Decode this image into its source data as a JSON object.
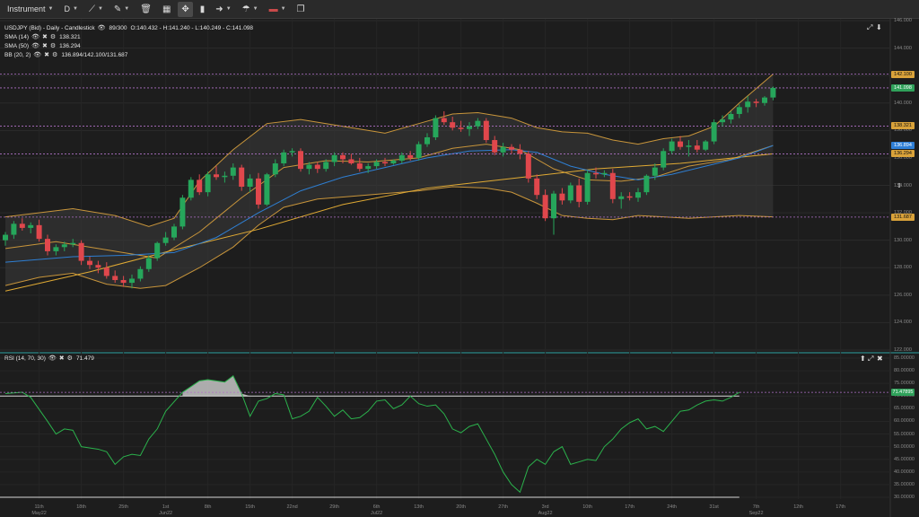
{
  "toolbar": {
    "instrument_label": "Instrument",
    "timeframe_label": "D",
    "icons": [
      "line-draw-icon",
      "pencil-icon",
      "trash-icon",
      "bar-chart-icon",
      "cross-icon",
      "candle-icon",
      "arrow-icon",
      "brush-icon",
      "flag-uk-icon",
      "copy-icon"
    ]
  },
  "header": {
    "title": "USDJPY (Bid) - Daily - Candlestick",
    "range": "89/300",
    "ohlc": "O:140.432 - H:141.240 - L:140.249 - C:141.098"
  },
  "indicators": [
    {
      "label": "SMA (14)",
      "value": "138.321",
      "color": "#f2b33d"
    },
    {
      "label": "SMA (50)",
      "value": "136.294",
      "color": "#3b8fd9"
    },
    {
      "label": "BB (20, 2)",
      "value": "136.894/142.100/131.687",
      "color": "#d49a3a"
    }
  ],
  "rsi": {
    "label": "RSI (14, 70, 30)",
    "value": "71.479"
  },
  "colors": {
    "up": "#26a65b",
    "down": "#e0474c",
    "bb": "#c8953b",
    "sma14": "#e0aa34",
    "sma50": "#2e7fd3",
    "rsi": "#2bb24c"
  },
  "price_tags": [
    {
      "text": "142.100",
      "price": 142.1,
      "bg": "#d9a23a"
    },
    {
      "text": "141.098",
      "price": 141.098,
      "bg": "#2fa15a"
    },
    {
      "text": "138.321",
      "price": 138.321,
      "bg": "#d9a23a"
    },
    {
      "text": "136.894",
      "price": 136.894,
      "bg": "#2f7fd6"
    },
    {
      "text": "136.294",
      "price": 136.294,
      "bg": "#d9a23a"
    },
    {
      "text": "131.687",
      "price": 131.687,
      "bg": "#d9a23a"
    }
  ],
  "rsi_tag": {
    "text": "71.47895",
    "value": 71.47895,
    "bg": "#2fa15a"
  },
  "chart_data": {
    "type": "candlestick",
    "price_axis_ticks": [
      "146.000",
      "144.000",
      "142.000",
      "140.000",
      "138.000",
      "136.000",
      "134.000",
      "132.000",
      "130.000",
      "128.000",
      "126.000",
      "124.000",
      "122.000"
    ],
    "rsi_axis_ticks": [
      "85.00000",
      "80.00000",
      "75.00000",
      "70.00000",
      "65.00000",
      "60.00000",
      "55.00000",
      "50.00000",
      "45.00000",
      "40.00000",
      "35.00000",
      "30.00000"
    ],
    "x_ticks": [
      {
        "label": "11th",
        "sub": "May22"
      },
      {
        "label": "18th",
        "sub": ""
      },
      {
        "label": "25th",
        "sub": ""
      },
      {
        "label": "1st",
        "sub": "Jun22"
      },
      {
        "label": "8th",
        "sub": ""
      },
      {
        "label": "15th",
        "sub": ""
      },
      {
        "label": "22nd",
        "sub": ""
      },
      {
        "label": "29th",
        "sub": ""
      },
      {
        "label": "6th",
        "sub": "Jul22"
      },
      {
        "label": "13th",
        "sub": ""
      },
      {
        "label": "20th",
        "sub": ""
      },
      {
        "label": "27th",
        "sub": ""
      },
      {
        "label": "3rd",
        "sub": "Aug22"
      },
      {
        "label": "10th",
        "sub": ""
      },
      {
        "label": "17th",
        "sub": ""
      },
      {
        "label": "24th",
        "sub": ""
      },
      {
        "label": "31st",
        "sub": ""
      },
      {
        "label": "7th",
        "sub": "Sep22"
      },
      {
        "label": "12th",
        "sub": ""
      },
      {
        "label": "17th",
        "sub": ""
      }
    ],
    "candles": [
      [
        130.0,
        130.6,
        129.6,
        130.4
      ],
      [
        130.4,
        131.4,
        130.1,
        131.2
      ],
      [
        131.2,
        131.6,
        130.7,
        130.9
      ],
      [
        130.9,
        131.3,
        130.5,
        131.1
      ],
      [
        131.1,
        131.5,
        129.9,
        130.1
      ],
      [
        130.1,
        130.4,
        128.9,
        129.2
      ],
      [
        129.2,
        129.7,
        128.9,
        129.5
      ],
      [
        129.5,
        129.9,
        129.2,
        129.7
      ],
      [
        129.7,
        130.1,
        129.5,
        129.8
      ],
      [
        129.8,
        130.0,
        128.2,
        128.5
      ],
      [
        128.5,
        128.8,
        127.9,
        128.2
      ],
      [
        128.2,
        128.5,
        127.6,
        128.0
      ],
      [
        128.0,
        128.4,
        127.2,
        127.4
      ],
      [
        127.4,
        127.8,
        126.9,
        127.1
      ],
      [
        127.1,
        127.4,
        126.6,
        126.9
      ],
      [
        126.9,
        127.5,
        126.5,
        127.2
      ],
      [
        127.2,
        128.1,
        127.0,
        127.9
      ],
      [
        127.9,
        128.9,
        127.7,
        128.7
      ],
      [
        128.7,
        129.9,
        128.5,
        129.8
      ],
      [
        129.8,
        130.6,
        129.6,
        130.2
      ],
      [
        130.2,
        131.2,
        130.0,
        131.0
      ],
      [
        131.0,
        133.3,
        130.8,
        133.1
      ],
      [
        133.1,
        134.6,
        132.9,
        134.4
      ],
      [
        134.4,
        134.8,
        133.3,
        133.5
      ],
      [
        133.5,
        135.0,
        133.2,
        134.8
      ],
      [
        134.8,
        135.4,
        134.4,
        134.6
      ],
      [
        134.6,
        135.0,
        134.2,
        134.7
      ],
      [
        134.7,
        135.6,
        134.4,
        135.3
      ],
      [
        135.3,
        135.5,
        133.6,
        133.9
      ],
      [
        133.9,
        134.8,
        133.5,
        134.5
      ],
      [
        134.5,
        134.9,
        132.3,
        132.6
      ],
      [
        132.6,
        134.9,
        132.5,
        134.8
      ],
      [
        134.8,
        135.9,
        134.6,
        135.6
      ],
      [
        135.6,
        136.6,
        135.4,
        136.4
      ],
      [
        136.4,
        136.7,
        136.1,
        136.5
      ],
      [
        136.5,
        136.7,
        135.0,
        135.2
      ],
      [
        135.2,
        135.7,
        134.8,
        135.5
      ],
      [
        135.5,
        135.7,
        134.9,
        135.2
      ],
      [
        135.2,
        135.9,
        135.0,
        135.7
      ],
      [
        135.7,
        136.4,
        135.4,
        136.2
      ],
      [
        136.2,
        136.4,
        135.6,
        135.9
      ],
      [
        135.9,
        136.3,
        135.5,
        135.6
      ],
      [
        135.6,
        136.0,
        135.0,
        135.2
      ],
      [
        135.2,
        135.6,
        134.9,
        135.4
      ],
      [
        135.4,
        135.9,
        135.2,
        135.7
      ],
      [
        135.7,
        136.0,
        135.4,
        135.6
      ],
      [
        135.6,
        135.9,
        135.5,
        135.8
      ],
      [
        135.8,
        136.4,
        135.6,
        136.2
      ],
      [
        136.2,
        136.5,
        135.8,
        136.0
      ],
      [
        136.0,
        137.2,
        135.8,
        137.0
      ],
      [
        137.0,
        137.8,
        136.8,
        137.5
      ],
      [
        137.5,
        139.1,
        137.3,
        138.9
      ],
      [
        138.9,
        139.4,
        138.4,
        138.6
      ],
      [
        138.6,
        139.0,
        138.0,
        138.2
      ],
      [
        138.2,
        138.7,
        137.9,
        138.1
      ],
      [
        138.1,
        138.6,
        137.6,
        138.3
      ],
      [
        138.3,
        138.9,
        138.1,
        138.7
      ],
      [
        138.7,
        138.9,
        137.1,
        137.3
      ],
      [
        137.3,
        137.6,
        136.2,
        136.4
      ],
      [
        136.4,
        137.1,
        136.1,
        136.8
      ],
      [
        136.8,
        137.0,
        136.3,
        136.6
      ],
      [
        136.6,
        137.0,
        135.9,
        136.3
      ],
      [
        136.3,
        136.5,
        134.2,
        134.5
      ],
      [
        134.5,
        134.8,
        133.0,
        133.3
      ],
      [
        133.3,
        133.7,
        131.4,
        131.6
      ],
      [
        131.6,
        133.6,
        130.4,
        133.4
      ],
      [
        133.4,
        133.8,
        132.6,
        132.9
      ],
      [
        132.9,
        134.2,
        132.7,
        134.0
      ],
      [
        134.0,
        134.5,
        132.4,
        132.8
      ],
      [
        132.8,
        135.1,
        132.6,
        134.9
      ],
      [
        134.9,
        135.3,
        134.5,
        134.8
      ],
      [
        134.8,
        135.1,
        134.6,
        134.9
      ],
      [
        134.9,
        135.2,
        132.7,
        133.0
      ],
      [
        133.0,
        133.5,
        132.3,
        133.2
      ],
      [
        133.2,
        133.5,
        132.9,
        133.1
      ],
      [
        133.1,
        133.8,
        132.8,
        133.5
      ],
      [
        133.5,
        134.8,
        133.3,
        134.7
      ],
      [
        134.7,
        135.6,
        134.4,
        135.3
      ],
      [
        135.3,
        136.7,
        135.1,
        136.5
      ],
      [
        136.5,
        137.4,
        136.3,
        137.2
      ],
      [
        137.2,
        137.6,
        136.6,
        136.8
      ],
      [
        136.8,
        137.3,
        136.1,
        136.9
      ],
      [
        136.9,
        137.3,
        136.4,
        136.6
      ],
      [
        136.6,
        137.3,
        136.5,
        137.2
      ],
      [
        137.2,
        138.8,
        137.0,
        138.6
      ],
      [
        138.6,
        139.1,
        138.3,
        138.8
      ],
      [
        138.8,
        139.4,
        138.5,
        139.2
      ],
      [
        139.2,
        139.9,
        138.9,
        139.7
      ],
      [
        139.7,
        140.5,
        139.3,
        140.1
      ],
      [
        140.1,
        140.3,
        139.7,
        140.0
      ],
      [
        140.0,
        140.5,
        139.8,
        140.4
      ],
      [
        140.4,
        141.2,
        140.2,
        141.1
      ]
    ],
    "bb_upper": [
      [
        0,
        131.7
      ],
      [
        8,
        132.3
      ],
      [
        13,
        131.8
      ],
      [
        17,
        131.0
      ],
      [
        20,
        131.6
      ],
      [
        23,
        134.3
      ],
      [
        27,
        136.6
      ],
      [
        31,
        138.5
      ],
      [
        35,
        138.8
      ],
      [
        40,
        138.3
      ],
      [
        45,
        137.8
      ],
      [
        49,
        138.5
      ],
      [
        53,
        139.2
      ],
      [
        56,
        139.3
      ],
      [
        60,
        138.9
      ],
      [
        63,
        138.2
      ],
      [
        66,
        137.9
      ],
      [
        69,
        137.8
      ],
      [
        72,
        137.3
      ],
      [
        75,
        137.0
      ],
      [
        78,
        137.4
      ],
      [
        81,
        137.6
      ],
      [
        84,
        138.3
      ],
      [
        87,
        140.0
      ],
      [
        91,
        142.1
      ]
    ],
    "bb_lower": [
      [
        0,
        126.7
      ],
      [
        4,
        127.3
      ],
      [
        8,
        127.6
      ],
      [
        12,
        126.8
      ],
      [
        16,
        126.5
      ],
      [
        19,
        126.7
      ],
      [
        23,
        128.0
      ],
      [
        27,
        129.5
      ],
      [
        30,
        131.1
      ],
      [
        33,
        132.4
      ],
      [
        37,
        133.0
      ],
      [
        41,
        133.2
      ],
      [
        45,
        133.4
      ],
      [
        49,
        133.6
      ],
      [
        53,
        133.9
      ],
      [
        57,
        133.8
      ],
      [
        60,
        133.5
      ],
      [
        63,
        132.7
      ],
      [
        66,
        131.8
      ],
      [
        69,
        131.6
      ],
      [
        72,
        131.5
      ],
      [
        75,
        131.8
      ],
      [
        78,
        131.7
      ],
      [
        81,
        131.6
      ],
      [
        84,
        131.7
      ],
      [
        87,
        131.8
      ],
      [
        91,
        131.7
      ]
    ],
    "bb_mid": [
      [
        0,
        129.4
      ],
      [
        6,
        129.9
      ],
      [
        12,
        129.3
      ],
      [
        18,
        128.7
      ],
      [
        23,
        130.6
      ],
      [
        28,
        133.1
      ],
      [
        33,
        135.3
      ],
      [
        38,
        135.8
      ],
      [
        43,
        135.7
      ],
      [
        49,
        136.0
      ],
      [
        53,
        136.7
      ],
      [
        57,
        137.0
      ],
      [
        61,
        136.6
      ],
      [
        65,
        135.2
      ],
      [
        69,
        134.4
      ],
      [
        73,
        134.3
      ],
      [
        77,
        134.6
      ],
      [
        81,
        135.4
      ],
      [
        86,
        135.9
      ],
      [
        91,
        136.9
      ]
    ],
    "sma14": [
      [
        0,
        129.8
      ],
      [
        5,
        130.4
      ],
      [
        10,
        129.9
      ],
      [
        15,
        128.0
      ],
      [
        20,
        128.8
      ],
      [
        25,
        132.5
      ],
      [
        30,
        134.4
      ],
      [
        35,
        135.5
      ],
      [
        40,
        135.7
      ],
      [
        45,
        135.6
      ],
      [
        50,
        136.5
      ],
      [
        55,
        137.3
      ],
      [
        59,
        137.4
      ],
      [
        63,
        136.0
      ],
      [
        67,
        134.2
      ],
      [
        71,
        133.7
      ],
      [
        75,
        133.9
      ],
      [
        79,
        135.2
      ],
      [
        84,
        136.1
      ],
      [
        88,
        137.2
      ],
      [
        91,
        138.3
      ]
    ],
    "sma50": [
      [
        0,
        126.3
      ],
      [
        10,
        127.7
      ],
      [
        20,
        129.3
      ],
      [
        30,
        130.8
      ],
      [
        40,
        132.6
      ],
      [
        50,
        133.8
      ],
      [
        60,
        134.5
      ],
      [
        70,
        135.2
      ],
      [
        80,
        135.6
      ],
      [
        91,
        136.3
      ]
    ],
    "sma50_blue": [
      [
        0,
        128.4
      ],
      [
        8,
        128.8
      ],
      [
        14,
        128.9
      ],
      [
        20,
        129.1
      ],
      [
        25,
        130.2
      ],
      [
        30,
        132.0
      ],
      [
        35,
        133.6
      ],
      [
        40,
        134.6
      ],
      [
        45,
        135.3
      ],
      [
        50,
        136.0
      ],
      [
        55,
        136.5
      ],
      [
        60,
        136.6
      ],
      [
        63,
        136.4
      ],
      [
        67,
        135.4
      ],
      [
        71,
        134.8
      ],
      [
        75,
        134.4
      ],
      [
        79,
        134.8
      ],
      [
        83,
        135.4
      ],
      [
        87,
        136.0
      ],
      [
        91,
        136.9
      ]
    ],
    "rsi_values": [
      [
        0,
        71.0
      ],
      [
        2,
        71.5
      ],
      [
        3,
        69.5
      ],
      [
        5,
        60.0
      ],
      [
        6,
        55.0
      ],
      [
        7,
        57.0
      ],
      [
        8,
        56.5
      ],
      [
        9,
        50.0
      ],
      [
        11,
        49.0
      ],
      [
        12,
        48.0
      ],
      [
        13,
        43.0
      ],
      [
        14,
        46.0
      ],
      [
        15,
        47.0
      ],
      [
        16,
        46.5
      ],
      [
        17,
        53.0
      ],
      [
        18,
        57.0
      ],
      [
        19,
        64.0
      ],
      [
        21,
        71.5
      ],
      [
        23,
        76.0
      ],
      [
        24,
        76.5
      ],
      [
        25,
        76.0
      ],
      [
        26,
        75.5
      ],
      [
        27,
        78.0
      ],
      [
        28,
        71.0
      ],
      [
        29,
        62.0
      ],
      [
        30,
        68.0
      ],
      [
        31,
        69.0
      ],
      [
        32,
        71.0
      ],
      [
        33,
        70.5
      ],
      [
        34,
        61.0
      ],
      [
        35,
        62.0
      ],
      [
        36,
        64.0
      ],
      [
        37,
        69.5
      ],
      [
        38,
        66.0
      ],
      [
        39,
        62.0
      ],
      [
        40,
        64.5
      ],
      [
        41,
        61.0
      ],
      [
        42,
        61.5
      ],
      [
        43,
        64.0
      ],
      [
        44,
        68.0
      ],
      [
        45,
        68.5
      ],
      [
        46,
        65.0
      ],
      [
        47,
        66.5
      ],
      [
        48,
        70.0
      ],
      [
        49,
        67.0
      ],
      [
        50,
        66.0
      ],
      [
        51,
        66.5
      ],
      [
        52,
        63.0
      ],
      [
        53,
        57.0
      ],
      [
        54,
        55.5
      ],
      [
        55,
        58.0
      ],
      [
        56,
        59.0
      ],
      [
        57,
        53.0
      ],
      [
        58,
        47.0
      ],
      [
        59,
        40.0
      ],
      [
        60,
        35.0
      ],
      [
        61,
        32.0
      ],
      [
        62,
        42.0
      ],
      [
        63,
        45.0
      ],
      [
        64,
        43.0
      ],
      [
        65,
        48.0
      ],
      [
        66,
        50.0
      ],
      [
        67,
        43.0
      ],
      [
        68,
        44.0
      ],
      [
        69,
        45.0
      ],
      [
        70,
        44.5
      ],
      [
        71,
        50.0
      ],
      [
        72,
        53.0
      ],
      [
        73,
        57.0
      ],
      [
        74,
        59.5
      ],
      [
        75,
        61.0
      ],
      [
        76,
        57.0
      ],
      [
        77,
        58.0
      ],
      [
        78,
        56.0
      ],
      [
        79,
        60.0
      ],
      [
        80,
        64.0
      ],
      [
        81,
        64.5
      ],
      [
        82,
        66.5
      ],
      [
        83,
        68.0
      ],
      [
        84,
        68.5
      ],
      [
        85,
        68.0
      ],
      [
        86,
        69.5
      ],
      [
        87,
        71.48
      ]
    ],
    "price_range": [
      122,
      146
    ],
    "rsi_range": [
      30,
      85
    ],
    "rsi_levels": [
      70,
      30
    ],
    "grid": true
  }
}
